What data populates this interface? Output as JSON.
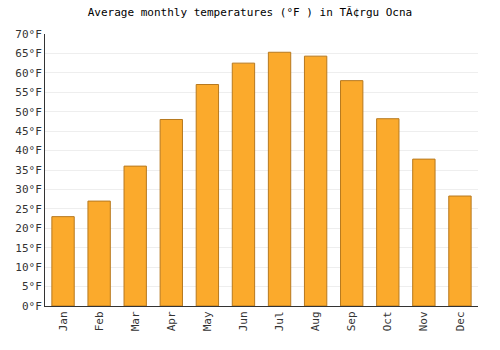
{
  "chart_data": {
    "type": "bar",
    "title": "Average monthly temperatures (°F ) in TÃ¢rgu Ocna",
    "categories": [
      "Jan",
      "Feb",
      "Mar",
      "Apr",
      "May",
      "Jun",
      "Jul",
      "Aug",
      "Sep",
      "Oct",
      "Nov",
      "Dec"
    ],
    "values": [
      23,
      27,
      36,
      48,
      57,
      62.5,
      65.3,
      64.3,
      58,
      48.2,
      37.8,
      28.3
    ],
    "color": "#fbaa2c",
    "ylim": [
      0,
      70
    ],
    "yticks": [
      {
        "value": 0,
        "label": "0°F"
      },
      {
        "value": 5,
        "label": "5°F"
      },
      {
        "value": 10,
        "label": "10°F"
      },
      {
        "value": 15,
        "label": "15°F"
      },
      {
        "value": 20,
        "label": "20°F"
      },
      {
        "value": 25,
        "label": "25°F"
      },
      {
        "value": 30,
        "label": "30°F"
      },
      {
        "value": 35,
        "label": "35°F"
      },
      {
        "value": 40,
        "label": "40°F"
      },
      {
        "value": 45,
        "label": "45°F"
      },
      {
        "value": 50,
        "label": "50°F"
      },
      {
        "value": 55,
        "label": "55°F"
      },
      {
        "value": 60,
        "label": "60°F"
      },
      {
        "value": 65,
        "label": "65°F"
      },
      {
        "value": 70,
        "label": "70°F"
      }
    ],
    "grid": true
  }
}
